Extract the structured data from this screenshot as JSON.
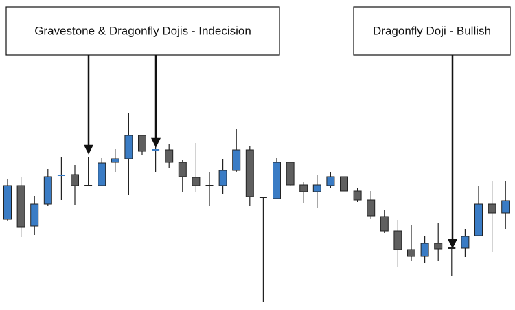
{
  "chart_data": {
    "type": "candlestick",
    "up_color": "#3a7cc5",
    "down_color": "#5f5f5f",
    "ylim": [
      0,
      451
    ],
    "open": [
      132,
      181,
      122,
      154,
      195,
      197,
      181,
      181,
      215,
      220,
      254,
      232,
      233,
      215,
      193,
      181,
      181,
      203,
      233,
      164,
      162,
      215,
      182,
      172,
      181,
      194,
      173,
      160,
      136,
      115,
      88,
      78,
      97,
      90,
      90,
      108,
      154,
      141
    ],
    "high": [
      191,
      193,
      166,
      205,
      223,
      211,
      223,
      221,
      234,
      286,
      254,
      242,
      241,
      218,
      243,
      201,
      219,
      263,
      239,
      165,
      221,
      215,
      186,
      196,
      201,
      194,
      178,
      173,
      146,
      131,
      123,
      107,
      126,
      91,
      118,
      181,
      187,
      187
    ],
    "low": [
      129,
      106,
      109,
      151,
      160,
      153,
      181,
      181,
      201,
      168,
      226,
      201,
      206,
      171,
      171,
      151,
      169,
      201,
      151,
      11,
      161,
      180,
      155,
      148,
      178,
      173,
      157,
      133,
      112,
      63,
      71,
      68,
      71,
      49,
      77,
      108,
      84,
      118
    ],
    "close": [
      181,
      121,
      154,
      194,
      196,
      181,
      181,
      214,
      220,
      254,
      231,
      233,
      215,
      194,
      181,
      181,
      203,
      233,
      165,
      164,
      215,
      182,
      172,
      182,
      194,
      173,
      160,
      137,
      115,
      88,
      78,
      97,
      89,
      90,
      107,
      154,
      141,
      159
    ],
    "annotations": [
      {
        "text": "Gravestone & Dragonfly Dojis - Indecision"
      },
      {
        "text": "Dragonfly Doji - Bullish"
      }
    ]
  }
}
